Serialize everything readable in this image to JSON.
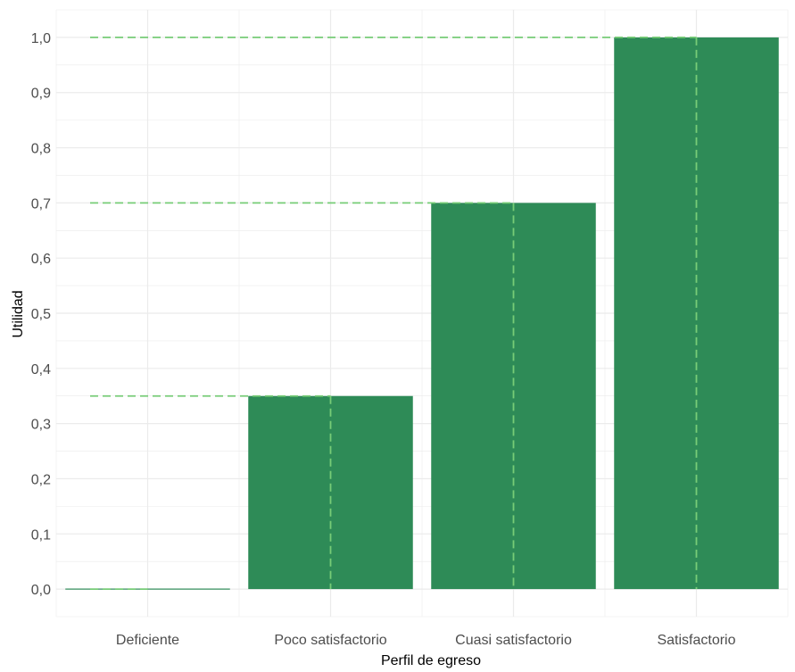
{
  "chart_data": {
    "type": "bar",
    "title": "",
    "xlabel": "Perfil de egreso",
    "ylabel": "Utilidad",
    "categories": [
      "Deficiente",
      "Poco satisfactorio",
      "Cuasi satisfactorio",
      "Satisfactorio"
    ],
    "values": [
      0.0,
      0.35,
      0.7,
      1.0
    ],
    "ylim": [
      -0.05,
      1.05
    ],
    "yticks": [
      "0,0",
      "0,1",
      "0,2",
      "0,3",
      "0,4",
      "0,5",
      "0,6",
      "0,7",
      "0,8",
      "0,9",
      "1,0"
    ],
    "grid": true,
    "legend": "none",
    "reference_lines": {
      "style": "dashed",
      "note": "Horizontal dashed lines from the left edge to each bar center at its value, and vertical dashed lines down the bar centers."
    },
    "colors": {
      "bar": "#2e8b57",
      "guide": "#77cc77",
      "grid": "#ebebeb",
      "text": "#4d4d4d",
      "axis_title": "#000000"
    }
  }
}
